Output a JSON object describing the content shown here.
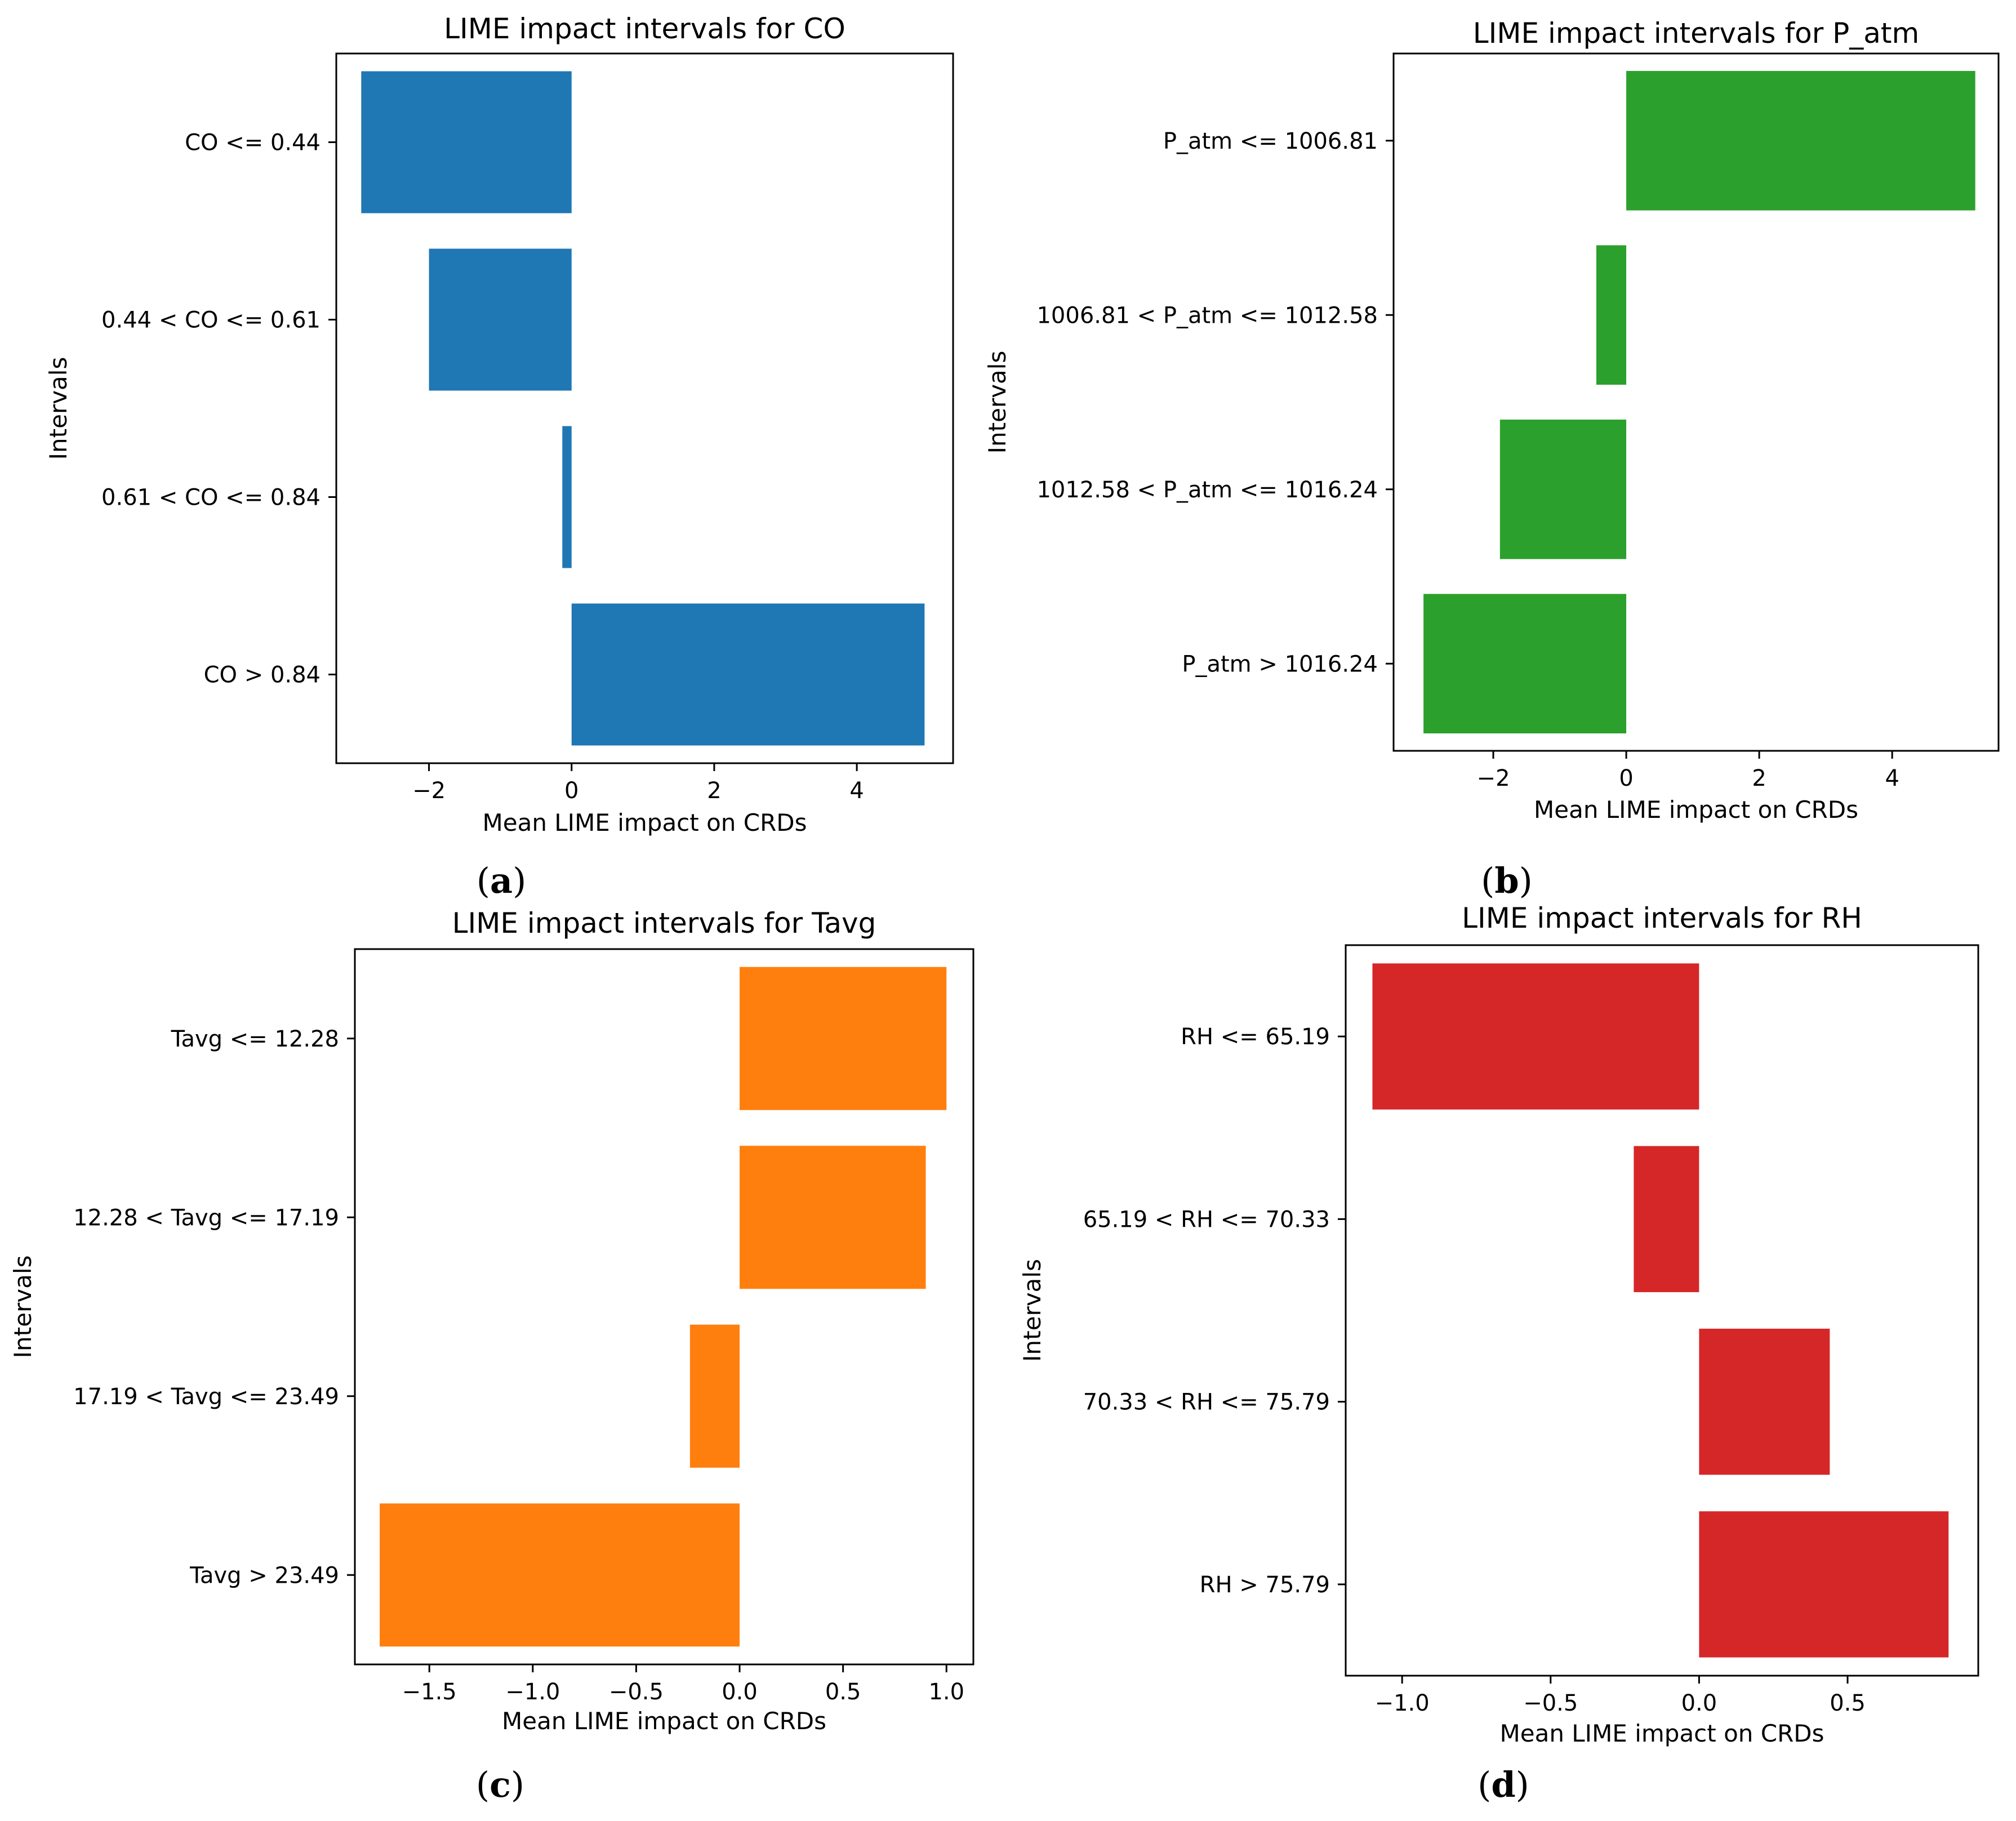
{
  "figure_captions": [
    "a",
    "b",
    "c",
    "d"
  ],
  "chart_data": [
    {
      "panel": "a",
      "type": "bar",
      "orientation": "horizontal",
      "title": "LIME impact intervals for CO",
      "xlabel": "Mean LIME impact on CRDs",
      "ylabel": "Intervals",
      "categories": [
        "CO <= 0.44",
        "0.44 < CO <= 0.61",
        "0.61 < CO <= 0.84",
        "CO > 0.84"
      ],
      "values": [
        -2.95,
        -2.0,
        -0.13,
        4.95
      ],
      "xlim": [
        -3.3,
        5.35
      ],
      "xticks": [
        -2,
        0,
        2,
        4
      ],
      "xtick_labels": [
        "−2",
        "0",
        "2",
        "4"
      ],
      "color": "#1f77b4",
      "grid": false
    },
    {
      "panel": "b",
      "type": "bar",
      "orientation": "horizontal",
      "title": "LIME impact intervals for P_atm",
      "xlabel": "Mean LIME impact on CRDs",
      "ylabel": "Intervals",
      "categories": [
        "P_atm <= 1006.81",
        "1006.81 < P_atm <= 1012.58",
        "1012.58 < P_atm <= 1016.24",
        "P_atm > 1016.24"
      ],
      "values": [
        5.25,
        -0.45,
        -1.9,
        -3.05
      ],
      "xlim": [
        -3.5,
        5.6
      ],
      "xticks": [
        -2,
        0,
        2,
        4
      ],
      "xtick_labels": [
        "−2",
        "0",
        "2",
        "4"
      ],
      "color": "#2ca02c",
      "grid": false
    },
    {
      "panel": "c",
      "type": "bar",
      "orientation": "horizontal",
      "title": "LIME impact intervals for Tavg",
      "xlabel": "Mean LIME impact on CRDs",
      "ylabel": "Intervals",
      "categories": [
        "Tavg <= 12.28",
        "12.28 < Tavg <= 17.19",
        "17.19 < Tavg <= 23.49",
        "Tavg > 23.49"
      ],
      "values": [
        1.0,
        0.9,
        -0.24,
        -1.74
      ],
      "xlim": [
        -1.86,
        1.13
      ],
      "xticks": [
        -1.5,
        -1.0,
        -0.5,
        0.0,
        0.5,
        1.0
      ],
      "xtick_labels": [
        "−1.5",
        "−1.0",
        "−0.5",
        "0.0",
        "0.5",
        "1.0"
      ],
      "color": "#ff7f0e",
      "grid": false
    },
    {
      "panel": "d",
      "type": "bar",
      "orientation": "horizontal",
      "title": "LIME impact intervals for RH",
      "xlabel": "Mean LIME impact on CRDs",
      "ylabel": "Intervals",
      "categories": [
        "RH <= 65.19",
        "65.19 < RH <= 70.33",
        "70.33 < RH <= 75.79",
        "RH > 75.79"
      ],
      "values": [
        -1.1,
        -0.22,
        0.44,
        0.84
      ],
      "xlim": [
        -1.19,
        0.94
      ],
      "xticks": [
        -1.0,
        -0.5,
        0.0,
        0.5
      ],
      "xtick_labels": [
        "−1.0",
        "−0.5",
        "0.0",
        "0.5"
      ],
      "color": "#d62728",
      "grid": false
    }
  ]
}
